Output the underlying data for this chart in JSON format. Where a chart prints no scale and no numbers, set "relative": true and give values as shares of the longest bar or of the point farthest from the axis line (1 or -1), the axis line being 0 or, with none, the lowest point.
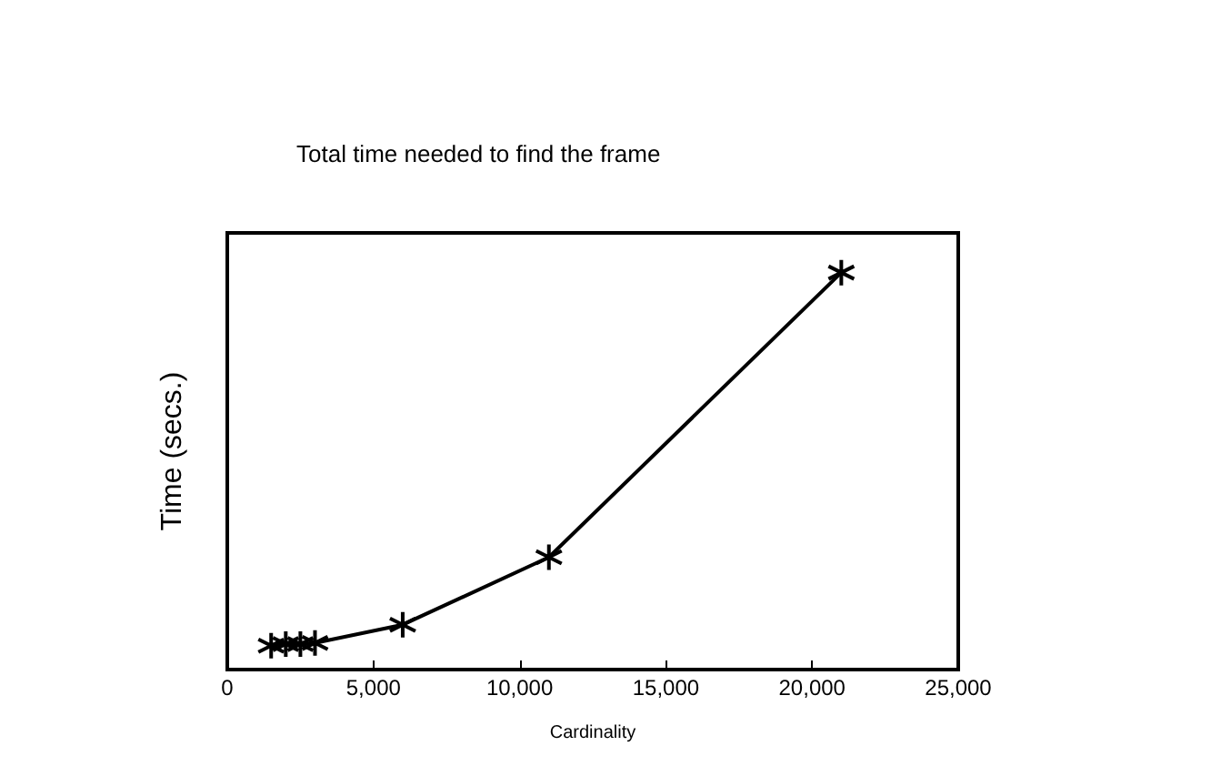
{
  "chart_data": {
    "type": "line",
    "title": "Total time needed to find the frame",
    "xlabel": "Cardinality",
    "ylabel": "Time (secs.)",
    "relative": true,
    "x": [
      1500,
      2000,
      2500,
      3000,
      6000,
      11000,
      21000
    ],
    "values": [
      0.06,
      0.064,
      0.064,
      0.067,
      0.113,
      0.283,
      1
    ],
    "color": "#000000",
    "marker": "cross",
    "line_style": "solid",
    "grid": false,
    "xlim": [
      0,
      25000
    ],
    "xticks": [
      0,
      {
        "value": 5000,
        "label": "5,000"
      },
      {
        "value": 10000,
        "label": "10,000"
      },
      {
        "value": 15000,
        "label": "15,000"
      },
      {
        "value": 20000,
        "label": "20,000"
      },
      {
        "value": 25000,
        "label": "25,000"
      }
    ]
  }
}
